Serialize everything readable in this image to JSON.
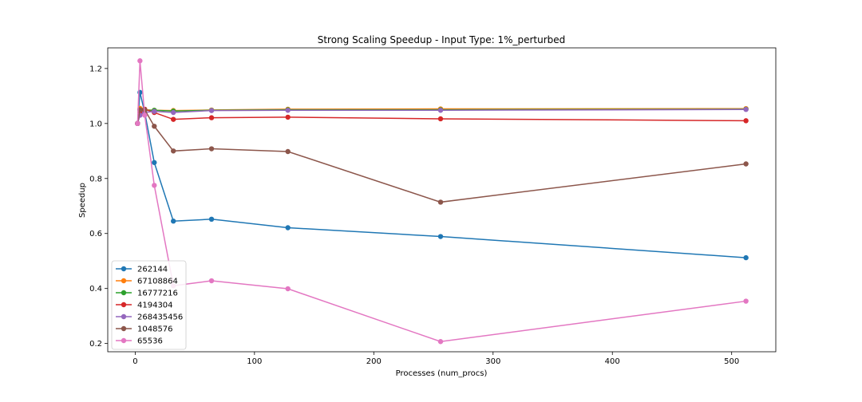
{
  "chart_data": {
    "type": "line",
    "title": "Strong Scaling Speedup - Input Type: 1%_perturbed",
    "xlabel": "Processes (num_procs)",
    "ylabel": "Speedup",
    "xlim": [
      -23,
      537
    ],
    "ylim": [
      0.17,
      1.275
    ],
    "x_ticks": [
      0,
      100,
      200,
      300,
      400,
      500
    ],
    "y_ticks": [
      0.2,
      0.4,
      0.6,
      0.8,
      1.0,
      1.2
    ],
    "grid": false,
    "legend_position": "lower-left",
    "x": [
      2,
      4,
      8,
      16,
      32,
      64,
      128,
      256,
      512
    ],
    "series": [
      {
        "name": "262144",
        "color": "#1f77b4",
        "values": [
          1.0,
          1.113,
          1.04,
          0.858,
          0.645,
          0.652,
          0.621,
          0.589,
          0.512
        ]
      },
      {
        "name": "67108864",
        "color": "#ff7f0e",
        "values": [
          1.0,
          1.055,
          1.05,
          1.048,
          1.047,
          1.049,
          1.052,
          1.053,
          1.054
        ]
      },
      {
        "name": "16777216",
        "color": "#2ca02c",
        "values": [
          1.0,
          1.05,
          1.048,
          1.048,
          1.045,
          1.048,
          1.05,
          1.05,
          1.052
        ]
      },
      {
        "name": "4194304",
        "color": "#d62728",
        "values": [
          1.0,
          1.042,
          1.052,
          1.04,
          1.015,
          1.021,
          1.023,
          1.017,
          1.01
        ]
      },
      {
        "name": "268435456",
        "color": "#9467bd",
        "values": [
          1.0,
          1.03,
          1.04,
          1.044,
          1.04,
          1.047,
          1.048,
          1.048,
          1.051
        ]
      },
      {
        "name": "1048576",
        "color": "#8c564b",
        "values": [
          1.0,
          1.05,
          1.05,
          0.99,
          0.9,
          0.908,
          0.898,
          0.714,
          0.853
        ]
      },
      {
        "name": "65536",
        "color": "#e377c2",
        "values": [
          1.0,
          1.228,
          1.03,
          0.775,
          0.41,
          0.428,
          0.399,
          0.207,
          0.354
        ]
      }
    ]
  }
}
